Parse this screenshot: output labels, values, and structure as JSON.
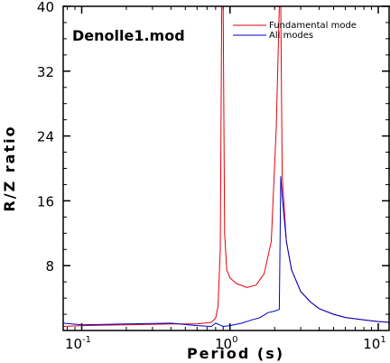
{
  "chart_data": {
    "type": "line",
    "title": "Denolle1.mod",
    "xlabel": "Period (s)",
    "ylabel": "R/Z ratio",
    "xscale": "log",
    "xlim": [
      0.075,
      12
    ],
    "ylim": [
      0,
      40
    ],
    "y_ticks": [
      8,
      16,
      24,
      32,
      40
    ],
    "y_tick_labels": [
      "8",
      "16",
      "24",
      "32",
      "40"
    ],
    "x_ticks": [
      0.1,
      1,
      10
    ],
    "x_tick_labels": [
      {
        "base": "10",
        "exp": "-1"
      },
      {
        "base": "10",
        "exp": "0"
      },
      {
        "base": "10",
        "exp": "1"
      }
    ],
    "legend_position": "top-right",
    "series": [
      {
        "name": "Fundamental mode",
        "color": "#e8000b",
        "x": [
          0.075,
          0.1,
          0.2,
          0.4,
          0.6,
          0.75,
          0.8,
          0.83,
          0.86,
          0.88,
          0.9,
          0.92,
          0.95,
          1.0,
          1.1,
          1.3,
          1.5,
          1.7,
          1.9,
          2.05,
          2.15,
          2.2,
          2.25,
          2.4,
          2.6,
          3.0,
          3.5,
          4.0,
          5.0,
          6.0,
          8.0,
          10.0,
          12.0
        ],
        "y": [
          0.5,
          0.6,
          0.7,
          0.8,
          0.8,
          1.0,
          1.5,
          3.0,
          10.0,
          40.0,
          40.0,
          12.0,
          7.5,
          6.5,
          5.8,
          5.3,
          5.6,
          7.0,
          11.0,
          25.0,
          40.0,
          40.0,
          19.0,
          11.0,
          7.5,
          4.8,
          3.5,
          2.7,
          2.0,
          1.6,
          1.3,
          1.1,
          1.0
        ]
      },
      {
        "name": "All modes",
        "color": "#0000cc",
        "x": [
          0.075,
          0.1,
          0.2,
          0.4,
          0.6,
          0.75,
          0.8,
          0.85,
          0.9,
          1.0,
          1.2,
          1.4,
          1.6,
          1.8,
          2.0,
          2.15,
          2.2,
          2.25,
          2.4,
          2.6,
          3.0,
          3.5,
          4.0,
          5.0,
          6.0,
          8.0,
          10.0,
          12.0
        ],
        "y": [
          0.9,
          0.7,
          0.8,
          0.9,
          0.6,
          0.5,
          0.9,
          0.7,
          0.5,
          0.6,
          0.9,
          1.3,
          1.6,
          2.2,
          2.4,
          2.6,
          19.0,
          16.5,
          11.0,
          7.5,
          4.8,
          3.5,
          2.7,
          2.0,
          1.6,
          1.3,
          1.1,
          1.0
        ]
      }
    ]
  }
}
